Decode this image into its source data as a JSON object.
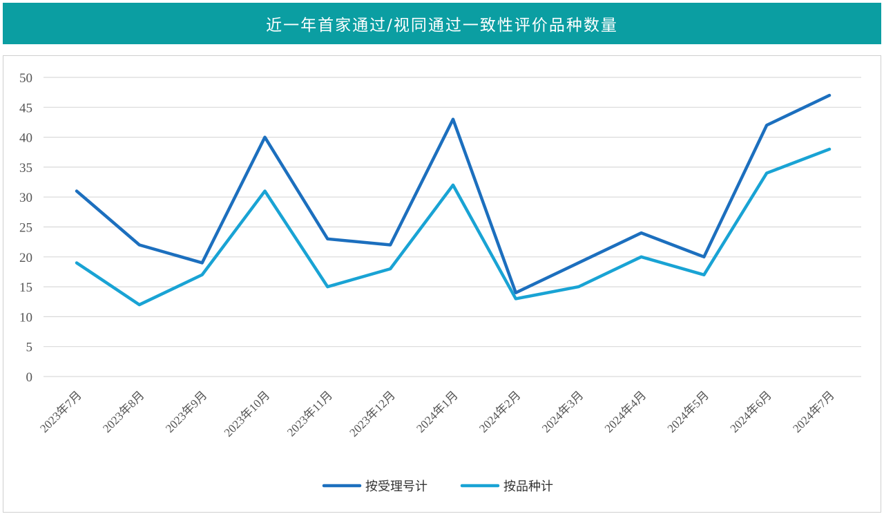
{
  "header": {
    "title": "近一年首家通过/视同通过一致性评价品种数量"
  },
  "colors": {
    "banner": "#0b9ea2",
    "series_dark": "#1c6fbe",
    "series_light": "#19a3d4",
    "grid": "#d9d9d9"
  },
  "chart_data": {
    "type": "line",
    "title": "",
    "xlabel": "",
    "ylabel": "",
    "ylim": [
      0,
      50
    ],
    "y_ticks": [
      0,
      5,
      10,
      15,
      20,
      25,
      30,
      35,
      40,
      45,
      50
    ],
    "grid": "horizontal",
    "legend_position": "bottom-center",
    "categories": [
      "2023年7月",
      "2023年8月",
      "2023年9月",
      "2023年10月",
      "2023年11月",
      "2023年12月",
      "2024年1月",
      "2024年2月",
      "2024年3月",
      "2024年4月",
      "2024年5月",
      "2024年6月",
      "2024年7月"
    ],
    "series": [
      {
        "name": "按受理号计",
        "color": "#1c6fbe",
        "values": [
          31,
          22,
          19,
          40,
          23,
          22,
          43,
          14,
          19,
          24,
          20,
          42,
          47
        ]
      },
      {
        "name": "按品种计",
        "color": "#19a3d4",
        "values": [
          19,
          12,
          17,
          31,
          15,
          18,
          32,
          13,
          15,
          20,
          17,
          34,
          38
        ]
      }
    ]
  }
}
